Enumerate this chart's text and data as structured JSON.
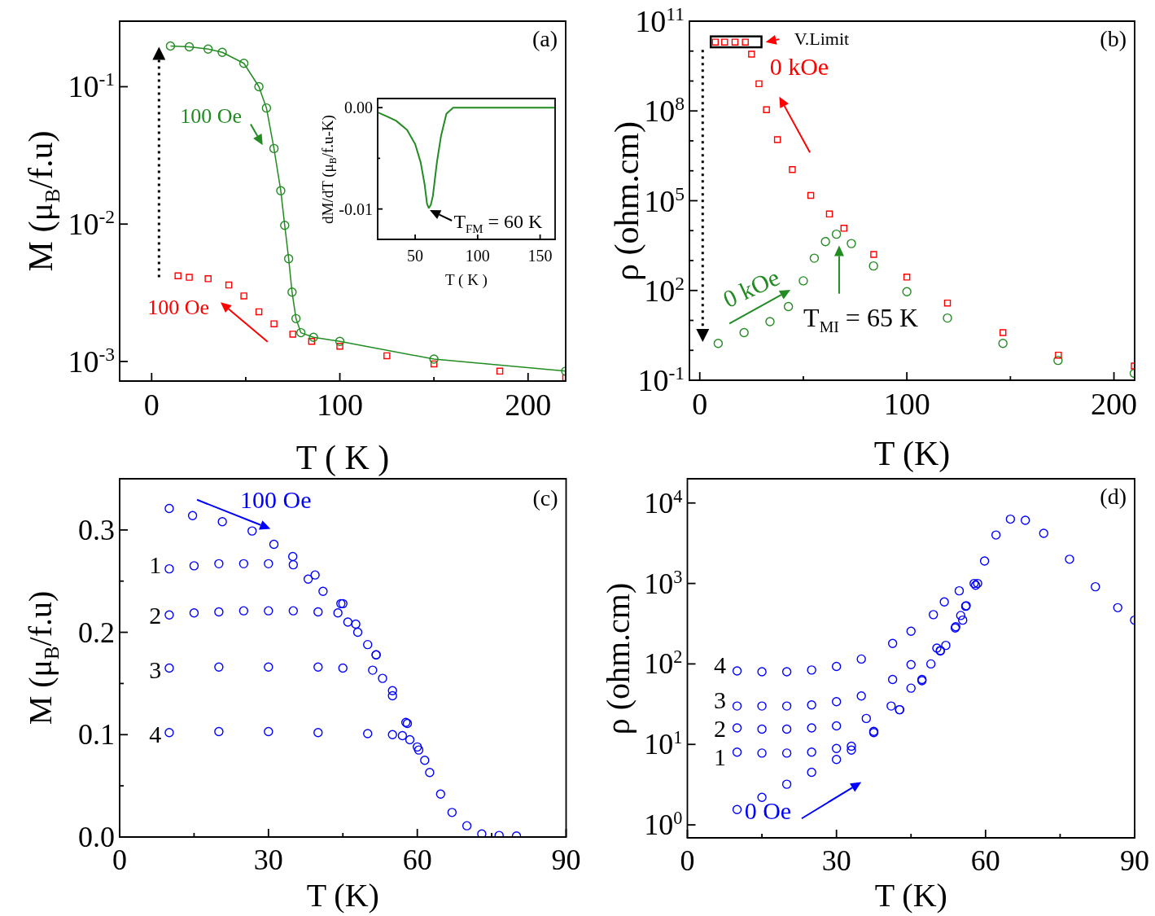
{
  "chart_data": [
    {
      "type": "scatter",
      "xlabel": "T ( K )",
      "ylabel": "M (μ$_{B}$/f.u)",
      "xlim": [
        -17,
        220
      ],
      "ylim": [
        0.00072,
        0.3
      ],
      "log": "y",
      "xticks": [
        0,
        {
          "value": 50,
          "label": null
        },
        100,
        {
          "value": 150,
          "label": null
        },
        200
      ],
      "yticks": [
        {
          "value": 0.001,
          "label": "10$^{-3}$"
        },
        {
          "value": 0.01,
          "label": "10$^{-2}$"
        },
        {
          "value": 0.1,
          "label": "10$^{-1}$"
        }
      ],
      "annotations": [
        "(a)"
      ],
      "series": [
        {
          "name": "100 Oe",
          "type": "line",
          "marker": "circle",
          "color": "#228b22",
          "x": [
            10,
            20,
            30,
            37.5,
            49,
            57,
            61,
            65,
            68.6,
            70.7,
            72.8,
            74.6,
            76.7,
            79.3,
            86,
            100,
            150,
            220
          ],
          "values": [
            0.198,
            0.195,
            0.188,
            0.178,
            0.148,
            0.1,
            0.07,
            0.0355,
            0.0175,
            0.0098,
            0.0056,
            0.0032,
            0.00205,
            0.00162,
            0.0015,
            0.0014,
            0.00104,
            0.00085
          ]
        },
        {
          "name": "100 Oe",
          "type": "scatter",
          "marker": "square",
          "color": "#ff0000",
          "x": [
            14,
            20,
            30,
            41,
            49,
            57,
            65,
            75,
            85,
            100,
            125,
            150,
            185,
            220
          ],
          "values": [
            0.0042,
            0.0041,
            0.004,
            0.0036,
            0.003,
            0.0023,
            0.00188,
            0.00158,
            0.0014,
            0.00129,
            0.0011,
            0.00096,
            0.00085,
            0.00076
          ]
        }
      ]
    },
    {
      "type": "line",
      "xlabel": "T ( K )",
      "ylabel": "dM/dT (μ$_{B}$/f.u-K)",
      "xlim": [
        20,
        162
      ],
      "ylim": [
        -0.013,
        0.0009
      ],
      "xticks": [
        50,
        100,
        150
      ],
      "yticks": [
        {
          "value": -0.01,
          "label": "-0.01"
        },
        {
          "value": -0.005,
          "label": null
        },
        {
          "value": 0,
          "label": "0.00"
        }
      ],
      "marker": "none",
      "annotations": [
        {
          "text": "T$_{FM}$ = 60 K",
          "x": 60,
          "y": -0.01
        }
      ],
      "series": [
        {
          "color": "#228b22",
          "x": [
            20.6,
            28,
            34.8,
            43.5,
            50,
            54.4,
            57.6,
            59.5,
            60.9,
            62.5,
            64.2,
            67.4,
            70.7,
            75,
            80.4,
            100,
            130,
            162
          ],
          "values": [
            -0.0005,
            -0.0009,
            -0.0013,
            -0.0022,
            -0.0036,
            -0.0054,
            -0.0076,
            -0.0095,
            -0.0099,
            -0.0096,
            -0.0087,
            -0.0054,
            -0.0028,
            -0.0006,
            0,
            0,
            0,
            0
          ]
        }
      ]
    },
    {
      "type": "scatter",
      "xlabel": "T (K)",
      "ylabel": "ρ (ohm.cm)",
      "xlim": [
        -5,
        210
      ],
      "ylim": [
        0.1,
        100000000000
      ],
      "log": "y",
      "xticks": [
        0,
        {
          "value": 50,
          "label": null
        },
        100,
        {
          "value": 150,
          "label": null
        },
        200
      ],
      "yticks": [
        {
          "value": 0.1,
          "label": "10$^{-1}$"
        },
        {
          "value": 1,
          "label": null
        },
        {
          "value": 10,
          "label": null
        },
        {
          "value": 100,
          "label": "10$^{2}$"
        },
        {
          "value": 1000,
          "label": null
        },
        {
          "value": 10000,
          "label": null
        },
        {
          "value": 100000,
          "label": "10$^{5}$"
        },
        {
          "value": 1000000,
          "label": null
        },
        {
          "value": 10000000,
          "label": null
        },
        {
          "value": 100000000,
          "label": "10$^{8}$"
        },
        {
          "value": 1000000000,
          "label": null
        },
        {
          "value": 10000000000,
          "label": null
        },
        {
          "value": 100000000000,
          "label": "10$^{11}$"
        }
      ],
      "annotations": [
        "(b)",
        {
          "text": "V.Limit",
          "x": 22,
          "y": 20000000000
        },
        {
          "text": "T$_{MI}$ = 65 K",
          "x": 65,
          "y": 7600
        }
      ],
      "series": [
        {
          "name": "0 kOe",
          "type": "scatter",
          "marker": "square",
          "color": "#ff0000",
          "x": [
            7.5,
            12,
            17,
            22,
            25,
            28.6,
            32.2,
            37.5,
            44.7,
            53.6,
            62.6,
            69.6,
            84,
            100,
            119.6,
            146.4,
            173.2,
            209.8
          ],
          "values": [
            20000000000,
            20000000000,
            20000000000,
            20000000000,
            7900000000,
            810000000,
            110000000,
            11000000,
            1100000,
            150000,
            36000,
            12000,
            1600,
            280,
            38,
            3.9,
            0.69,
            0.3
          ]
        },
        {
          "name": "0 kOe",
          "type": "scatter",
          "marker": "circle",
          "color": "#228b22",
          "x": [
            8.9,
            21.4,
            33.9,
            42.8,
            50,
            55.3,
            60.7,
            66,
            73.2,
            83.9,
            100,
            119.6,
            146.4,
            173,
            209.8
          ],
          "values": [
            1.7,
            3.9,
            9.1,
            29,
            210,
            1200,
            4300,
            7600,
            3700,
            660,
            91,
            12,
            1.7,
            0.46,
            0.17
          ]
        }
      ]
    },
    {
      "type": "scatter",
      "xlabel": "T (K)",
      "ylabel": "M (μ$_{B}$/f.u)",
      "xlim": [
        0,
        90
      ],
      "ylim": [
        0,
        0.35
      ],
      "xticks": [
        0,
        {
          "value": 15,
          "label": null
        },
        30,
        {
          "value": 45,
          "label": null
        },
        60,
        {
          "value": 75,
          "label": null
        },
        90
      ],
      "yticks": [
        {
          "value": 0,
          "label": "0.0"
        },
        {
          "value": 0.05,
          "label": null
        },
        {
          "value": 0.1,
          "label": "0.1"
        },
        {
          "value": 0.15,
          "label": null
        },
        {
          "value": 0.2,
          "label": "0.2"
        },
        {
          "value": 0.25,
          "label": null
        },
        {
          "value": 0.3,
          "label": "0.3"
        }
      ],
      "marker": "circle",
      "annotations": [
        "(c)"
      ],
      "series": [
        {
          "name": "100 Oe",
          "color": "#0000ff",
          "x": [
            10,
            14.7,
            20.7,
            26.7,
            31.1,
            34.9,
            39.4,
            44.6,
            47.6,
            51.7,
            55,
            58,
            60.3,
            62.5,
            64.7,
            67,
            70,
            73,
            76.5,
            80
          ],
          "values": [
            0.321,
            0.314,
            0.308,
            0.299,
            0.286,
            0.274,
            0.256,
            0.228,
            0.208,
            0.178,
            0.143,
            0.111,
            0.085,
            0.063,
            0.042,
            0.024,
            0.011,
            0.003,
            0.0015,
            0.001
          ]
        },
        {
          "name": "1",
          "color": "#0000ff",
          "x": [
            10,
            15,
            20,
            25,
            30,
            35,
            38,
            41,
            45
          ],
          "values": [
            0.262,
            0.265,
            0.267,
            0.267,
            0.267,
            0.266,
            0.252,
            0.24,
            0.228
          ]
        },
        {
          "name": "2",
          "color": "#0000ff",
          "x": [
            10,
            15,
            20,
            25,
            30,
            35,
            40,
            44,
            46,
            48,
            50,
            51.7
          ],
          "values": [
            0.217,
            0.219,
            0.22,
            0.221,
            0.221,
            0.221,
            0.22,
            0.219,
            0.21,
            0.2,
            0.188,
            0.178
          ]
        },
        {
          "name": "3",
          "color": "#0000ff",
          "x": [
            10,
            20,
            30,
            40,
            45,
            51,
            53,
            55,
            57.7
          ],
          "values": [
            0.165,
            0.166,
            0.166,
            0.166,
            0.165,
            0.163,
            0.155,
            0.138,
            0.112
          ]
        },
        {
          "name": "4",
          "color": "#0000ff",
          "x": [
            10,
            20,
            30,
            40,
            50,
            55,
            57,
            58.5,
            60,
            61.5
          ],
          "values": [
            0.102,
            0.103,
            0.103,
            0.102,
            0.101,
            0.1,
            0.099,
            0.095,
            0.088,
            0.075
          ]
        }
      ]
    },
    {
      "type": "scatter",
      "xlabel": "T (K)",
      "ylabel": "ρ (ohm.cm)",
      "xlim": [
        0,
        90
      ],
      "ylim": [
        0.69,
        20000
      ],
      "log": "y",
      "xticks": [
        0,
        {
          "value": 15,
          "label": null
        },
        30,
        {
          "value": 45,
          "label": null
        },
        60,
        {
          "value": 75,
          "label": null
        },
        90
      ],
      "yticks": [
        {
          "value": 1,
          "label": "10$^{0}$"
        },
        {
          "value": 10,
          "label": "10$^{1}$"
        },
        {
          "value": 100,
          "label": "10$^{2}$"
        },
        {
          "value": 1000,
          "label": "10$^{3}$"
        },
        {
          "value": 10000,
          "label": "10$^{4}$"
        }
      ],
      "marker": "circle",
      "annotations": [
        "(d)"
      ],
      "series": [
        {
          "name": "0 Oe",
          "color": "#0000ff",
          "x": [
            10,
            15,
            20,
            25,
            30,
            33,
            37.5,
            42.7,
            47.2,
            50.9,
            53.9,
            56.1,
            58.4,
            59.8,
            62.1,
            65,
            68,
            71.7,
            76.9,
            82.1,
            86.6,
            90
          ],
          "values": [
            1.55,
            2.2,
            3.2,
            4.5,
            6.5,
            8.5,
            14.5,
            27,
            64,
            147,
            280,
            530,
            1000,
            1900,
            4000,
            6300,
            6100,
            4200,
            2000,
            910,
            500,
            350
          ]
        },
        {
          "name": "1",
          "color": "#0000ff",
          "x": [
            10,
            15,
            20,
            25,
            30,
            33,
            37.5,
            42.7,
            47.2,
            50.9,
            54,
            56,
            58
          ],
          "values": [
            8,
            7.8,
            7.8,
            8,
            8.9,
            9.5,
            14,
            27,
            62,
            145,
            290,
            520,
            950
          ]
        },
        {
          "name": "2",
          "color": "#0000ff",
          "x": [
            10,
            15,
            20,
            25,
            30,
            36,
            41,
            45,
            49,
            52,
            55
          ],
          "values": [
            16,
            15.5,
            15.5,
            16,
            17,
            21,
            30,
            50,
            100,
            170,
            400
          ]
        },
        {
          "name": "3",
          "color": "#0000ff",
          "x": [
            10,
            15,
            20,
            25,
            30,
            35,
            41.3,
            45,
            50.2,
            55.4
          ],
          "values": [
            30,
            30,
            30,
            31,
            34,
            40,
            64,
            98,
            157,
            350
          ]
        },
        {
          "name": "4",
          "color": "#0000ff",
          "x": [
            10,
            15,
            20,
            25,
            30,
            35,
            41.3,
            45,
            49.5,
            51.7,
            54.7,
            57.7
          ],
          "values": [
            82,
            80,
            80,
            84,
            93,
            115,
            180,
            255,
            410,
            590,
            810,
            1000
          ]
        }
      ]
    }
  ]
}
